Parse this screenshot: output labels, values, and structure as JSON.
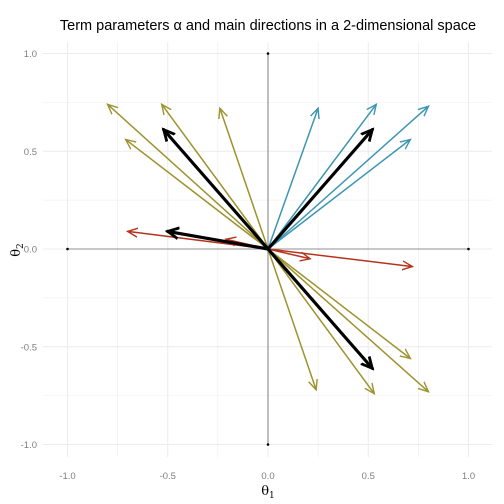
{
  "chart_data": {
    "type": "vector",
    "title": "Term parameters  α  and main directions in a 2-dimensional space",
    "xlabel": {
      "symbol": "θ",
      "sub": "1"
    },
    "ylabel": {
      "symbol": "θ",
      "sub": "2"
    },
    "xlim": [
      -1.0,
      1.0
    ],
    "ylim": [
      -1.0,
      1.0
    ],
    "x_ticks": [
      -1.0,
      -0.5,
      0.0,
      0.5,
      1.0
    ],
    "y_ticks": [
      -1.0,
      -0.5,
      0.0,
      0.5,
      1.0
    ],
    "x_tick_labels": [
      "-1.0",
      "-0.5",
      "0.0",
      "0.5",
      "1.0"
    ],
    "y_tick_labels": [
      "-1.0",
      "-0.5",
      "0.0",
      "0.5",
      "1.0"
    ],
    "grid": true,
    "colors": {
      "blue": "#3b96b3",
      "olive": "#9e922e",
      "red": "#b5331d",
      "direction": "#000000",
      "axis": "#333333",
      "grid": "#ececec"
    },
    "series": [
      {
        "color_key": "blue",
        "vectors": [
          [
            0.25,
            0.72
          ],
          [
            0.54,
            0.74
          ],
          [
            0.8,
            0.73
          ],
          [
            0.71,
            0.56
          ]
        ]
      },
      {
        "color_key": "olive",
        "vectors": [
          [
            -0.8,
            0.74
          ],
          [
            -0.53,
            0.74
          ],
          [
            -0.24,
            0.72
          ],
          [
            -0.71,
            0.56
          ],
          [
            0.24,
            -0.72
          ],
          [
            0.53,
            -0.74
          ],
          [
            0.8,
            -0.73
          ],
          [
            0.71,
            -0.56
          ]
        ]
      },
      {
        "color_key": "red",
        "vectors": [
          [
            -0.7,
            0.09
          ],
          [
            0.72,
            -0.09
          ],
          [
            -0.21,
            0.05
          ],
          [
            0.21,
            -0.05
          ]
        ]
      },
      {
        "color_key": "direction",
        "vectors": [
          [
            0.52,
            0.61
          ],
          [
            -0.52,
            0.61
          ],
          [
            0.52,
            -0.61
          ],
          [
            -0.5,
            0.09
          ]
        ]
      }
    ]
  }
}
